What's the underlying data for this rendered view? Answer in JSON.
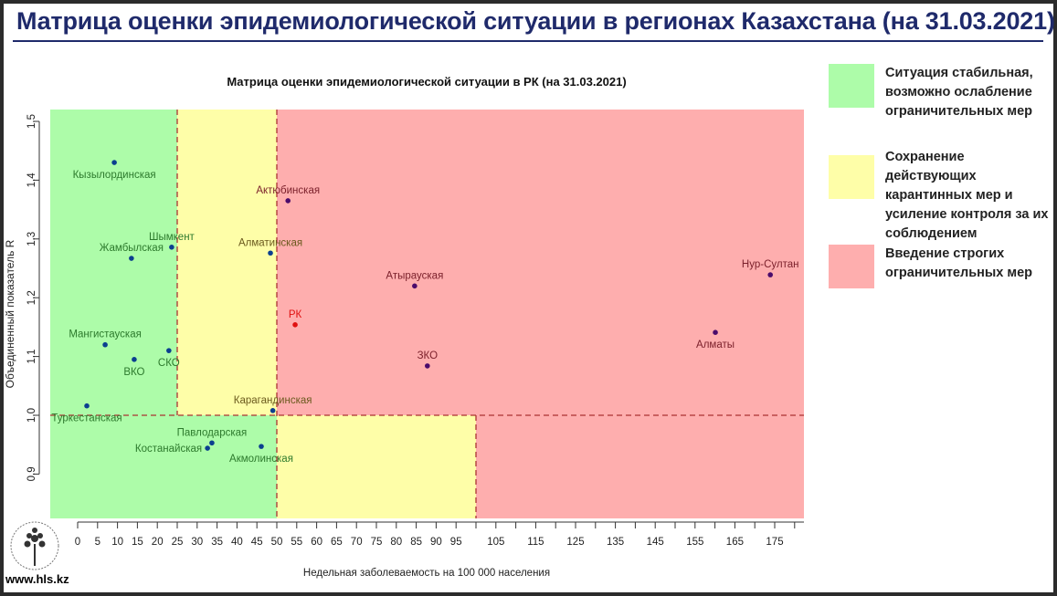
{
  "header": {
    "title": "Матрица оценки эпидемиологической ситуации в регионах Казахстана (на 31.03.2021)"
  },
  "footer": {
    "site": "www.hls.kz"
  },
  "legend": [
    {
      "text": "Ситуация стабильная,\nвозможно ослабление\nограничительных мер",
      "color": "#adfca9"
    },
    {
      "text": "Сохранение действующих\nкарантинных мер и\nусиление контроля за их\nсоблюдением",
      "color": "#fefea8"
    },
    {
      "text": "Введение строгих\nограничительных мер",
      "color": "#feaeae"
    }
  ],
  "chart_data": {
    "type": "scatter",
    "title": "Матрица оценки эпидемиологической ситуации в РК (на 31.03.2021)",
    "xlabel": "Недельная заболеваемость на 100 000 населения",
    "ylabel": "Объединенный показатель R",
    "xlim": [
      -7,
      183
    ],
    "ylim": [
      0.825,
      1.52
    ],
    "xticks": [
      0,
      5,
      10,
      15,
      20,
      25,
      30,
      35,
      40,
      45,
      50,
      55,
      60,
      65,
      70,
      75,
      80,
      85,
      90,
      95,
      105,
      115,
      125,
      135,
      145,
      155,
      165,
      175
    ],
    "yticks": [
      0.9,
      1.0,
      1.1,
      1.2,
      1.3,
      1.4,
      1.5
    ],
    "thresholds": {
      "x_upper": [
        25,
        50
      ],
      "x_lower": [
        50,
        100
      ],
      "y": 1.0
    },
    "zone_colors": {
      "green": "#adfca9",
      "yellow": "#fefea8",
      "red": "#feaeae"
    },
    "points": [
      {
        "label": "Кызылординская",
        "x": 9.2,
        "y": 1.43
      },
      {
        "label": "Актюбинская",
        "x": 52.8,
        "y": 1.365
      },
      {
        "label": "Шымкент",
        "x": 23.6,
        "y": 1.286
      },
      {
        "label": "Жамбылская",
        "x": 13.5,
        "y": 1.267
      },
      {
        "label": "Алматинская",
        "x": 48.4,
        "y": 1.276
      },
      {
        "label": "Нур-Султан",
        "x": 173.9,
        "y": 1.239
      },
      {
        "label": "Атырауская",
        "x": 84.6,
        "y": 1.22
      },
      {
        "label": "РК",
        "x": 54.6,
        "y": 1.154
      },
      {
        "label": "Алматы",
        "x": 160.1,
        "y": 1.141
      },
      {
        "label": "Мангистауская",
        "x": 6.9,
        "y": 1.12
      },
      {
        "label": "СКО",
        "x": 22.9,
        "y": 1.11
      },
      {
        "label": "ВКО",
        "x": 14.2,
        "y": 1.095
      },
      {
        "label": "ЗКО",
        "x": 87.8,
        "y": 1.084
      },
      {
        "label": "Туркестанская",
        "x": 2.3,
        "y": 1.016
      },
      {
        "label": "Карагандинская",
        "x": 49.0,
        "y": 1.008
      },
      {
        "label": "Павлодарская",
        "x": 33.7,
        "y": 0.953
      },
      {
        "label": "Костанайская",
        "x": 32.6,
        "y": 0.944
      },
      {
        "label": "Акмолинская",
        "x": 46.1,
        "y": 0.947
      }
    ]
  }
}
